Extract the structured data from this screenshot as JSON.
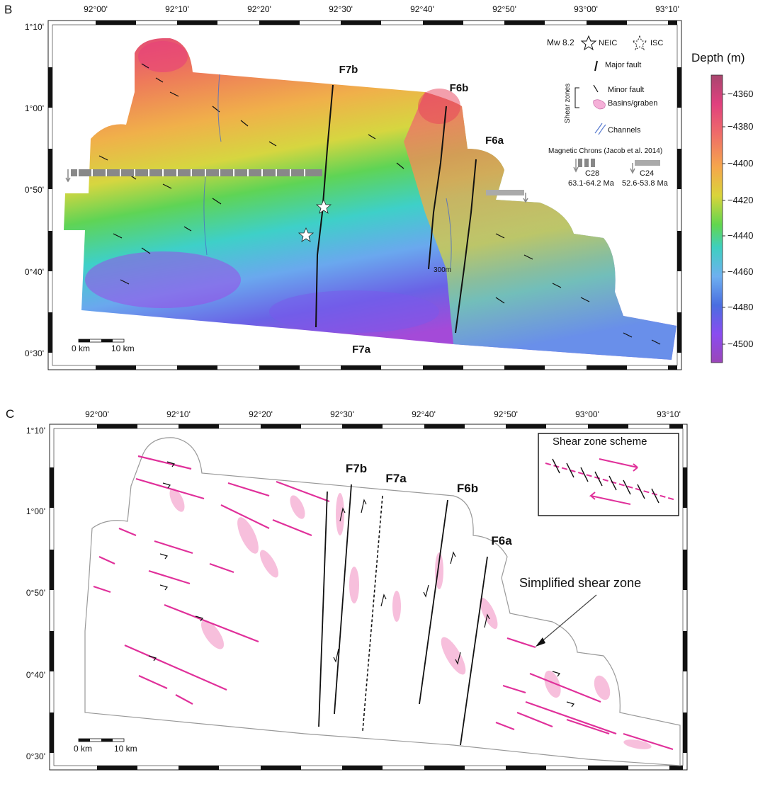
{
  "panel_b": {
    "letter": "B",
    "longitude_labels": [
      "92°00'",
      "92°10'",
      "92°20'",
      "92°30'",
      "92°40'",
      "92°50'",
      "93°00'",
      "93°10'"
    ],
    "latitude_labels": [
      "1°10'",
      "1°00'",
      "0°50'",
      "0°40'",
      "0°30'"
    ],
    "fault_labels": {
      "f7b": "F7b",
      "f6b": "F6b",
      "f6a": "F6a",
      "f7a": "F7a"
    },
    "contour_label": "300m",
    "scale_bar": {
      "zero": "0 km",
      "ten": "10 km"
    },
    "legend": {
      "mw": "Mw 8.2",
      "neic": "NEIC",
      "isc": "ISC",
      "major_fault": "Major fault",
      "shear_zones": "Shear zones",
      "minor_fault": "Minor fault",
      "basins": "Basins/graben",
      "channels": "Channels",
      "chrons_title": "Magnetic Chrons (Jacob et al. 2014)",
      "c28": "C28",
      "c28_age": "63.1-64.2 Ma",
      "c24": "C24",
      "c24_age": "52.6-53.8 Ma"
    },
    "colorbar": {
      "title": "Depth (m)",
      "ticks": [
        "−4360",
        "−4380",
        "−4400",
        "−4420",
        "−4440",
        "−4460",
        "−4480",
        "−4500"
      ],
      "colors": [
        "#a8466e",
        "#e0407e",
        "#ee6a6a",
        "#f5a64c",
        "#d9d43a",
        "#62d64e",
        "#3ecfc0",
        "#6eb0f0",
        "#4a6ee0",
        "#8a4cf0",
        "#9a46b8"
      ]
    }
  },
  "panel_c": {
    "letter": "C",
    "longitude_labels": [
      "92°00'",
      "92°10'",
      "92°20'",
      "92°30'",
      "92°40'",
      "92°50'",
      "93°00'",
      "93°10'"
    ],
    "latitude_labels": [
      "1°10'",
      "1°00'",
      "0°50'",
      "0°40'",
      "0°30'"
    ],
    "fault_labels": {
      "f7b": "F7b",
      "f7a": "F7a",
      "f6b": "F6b",
      "f6a": "F6a"
    },
    "scheme_title": "Shear zone scheme",
    "simplified_label": "Simplified shear zone",
    "scale_bar": {
      "zero": "0 km",
      "ten": "10 km"
    }
  }
}
